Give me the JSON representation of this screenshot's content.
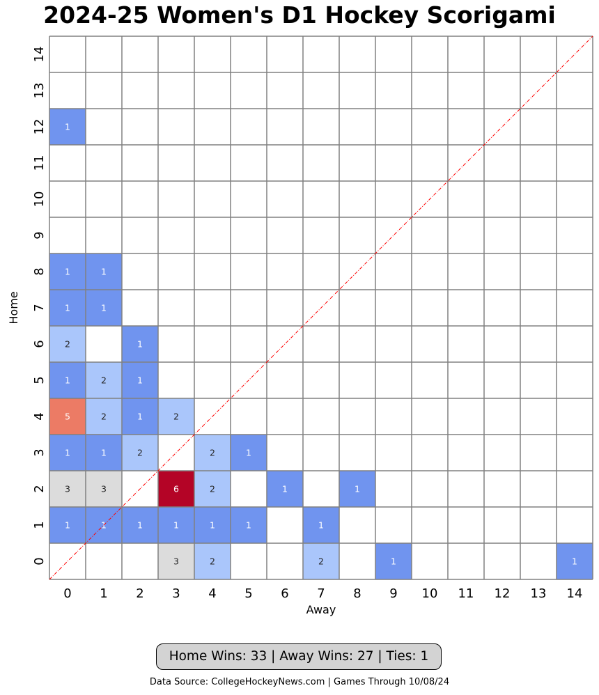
{
  "chart_data": {
    "type": "heatmap",
    "title": "2024-25 Women's D1 Hockey Scorigami",
    "xlabel": "Away",
    "ylabel": "Home",
    "x_ticks": [
      "0",
      "1",
      "2",
      "3",
      "4",
      "5",
      "6",
      "7",
      "8",
      "9",
      "10",
      "11",
      "12",
      "13",
      "14"
    ],
    "y_ticks": [
      "0",
      "1",
      "2",
      "3",
      "4",
      "5",
      "6",
      "7",
      "8",
      "9",
      "10",
      "11",
      "12",
      "13",
      "14"
    ],
    "xlim": [
      0,
      14
    ],
    "ylim": [
      0,
      14
    ],
    "diagonal_line": true,
    "colors": {
      "count_1": "#7094ef",
      "count_2": "#aac6fb",
      "count_3": "#dcdcdc",
      "count_5": "#ec7b65",
      "count_6": "#b40426",
      "grid": "#808080",
      "diagonal": "#ff0000"
    },
    "cells": [
      {
        "away": 3,
        "home": 0,
        "count": 3
      },
      {
        "away": 4,
        "home": 0,
        "count": 2
      },
      {
        "away": 7,
        "home": 0,
        "count": 2
      },
      {
        "away": 9,
        "home": 0,
        "count": 1
      },
      {
        "away": 14,
        "home": 0,
        "count": 1
      },
      {
        "away": 0,
        "home": 1,
        "count": 1
      },
      {
        "away": 1,
        "home": 1,
        "count": 1
      },
      {
        "away": 2,
        "home": 1,
        "count": 1
      },
      {
        "away": 3,
        "home": 1,
        "count": 1
      },
      {
        "away": 4,
        "home": 1,
        "count": 1
      },
      {
        "away": 5,
        "home": 1,
        "count": 1
      },
      {
        "away": 7,
        "home": 1,
        "count": 1
      },
      {
        "away": 0,
        "home": 2,
        "count": 3
      },
      {
        "away": 1,
        "home": 2,
        "count": 3
      },
      {
        "away": 3,
        "home": 2,
        "count": 6
      },
      {
        "away": 4,
        "home": 2,
        "count": 2
      },
      {
        "away": 6,
        "home": 2,
        "count": 1
      },
      {
        "away": 8,
        "home": 2,
        "count": 1
      },
      {
        "away": 0,
        "home": 3,
        "count": 1
      },
      {
        "away": 1,
        "home": 3,
        "count": 1
      },
      {
        "away": 2,
        "home": 3,
        "count": 2
      },
      {
        "away": 4,
        "home": 3,
        "count": 2
      },
      {
        "away": 5,
        "home": 3,
        "count": 1
      },
      {
        "away": 0,
        "home": 4,
        "count": 5
      },
      {
        "away": 1,
        "home": 4,
        "count": 2
      },
      {
        "away": 2,
        "home": 4,
        "count": 1
      },
      {
        "away": 3,
        "home": 4,
        "count": 2
      },
      {
        "away": 0,
        "home": 5,
        "count": 1
      },
      {
        "away": 1,
        "home": 5,
        "count": 2
      },
      {
        "away": 2,
        "home": 5,
        "count": 1
      },
      {
        "away": 0,
        "home": 6,
        "count": 2
      },
      {
        "away": 2,
        "home": 6,
        "count": 1
      },
      {
        "away": 0,
        "home": 7,
        "count": 1
      },
      {
        "away": 1,
        "home": 7,
        "count": 1
      },
      {
        "away": 0,
        "home": 8,
        "count": 1
      },
      {
        "away": 1,
        "home": 8,
        "count": 1
      },
      {
        "away": 0,
        "home": 12,
        "count": 1
      }
    ]
  },
  "summary": "Home Wins: 33 | Away Wins: 27 | Ties: 1",
  "data_source": "Data Source: CollegeHockeyNews.com | Games Through 10/08/24"
}
